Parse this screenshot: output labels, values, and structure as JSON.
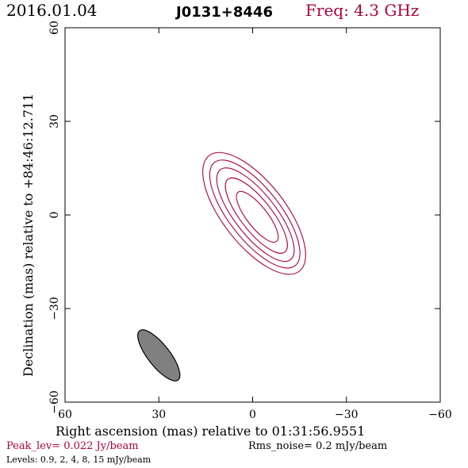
{
  "header": {
    "date": "2016.01.04",
    "source": "J0131+8446",
    "freq": "Freq: 4.3 GHz"
  },
  "footer": {
    "peak": "Peak_lev=  0.022 Jy/beam",
    "rms": "Rms_noise=   0.2 mJy/beam",
    "levels": "Levels: 0.9,    2,    4,    8,   15 mJy/beam"
  },
  "colors": {
    "accent": "#b0003a",
    "beam_fill": "#808080",
    "axes": "#000000"
  },
  "chart_data": {
    "type": "contour",
    "xlabel": "Right ascension (mas) relative to 01:31:56.9551",
    "ylabel": "Declination (mas) relative to +84:46:12.711",
    "xlim": [
      60,
      -60
    ],
    "ylim": [
      -60,
      60
    ],
    "x_ticks": [
      60,
      30,
      0,
      -30,
      -60
    ],
    "y_ticks": [
      -60,
      -30,
      0,
      30,
      60
    ],
    "x_tick_labels": [
      "60",
      "30",
      "0",
      "−30",
      "−60"
    ],
    "y_tick_labels": [
      "−60",
      "−30",
      "0",
      "30",
      "60"
    ],
    "contour_levels_mJy": [
      0.9,
      2,
      4,
      8,
      15
    ],
    "contours": [
      {
        "level": 0.9,
        "cx": -0.5,
        "cy": 0.5,
        "major": 23.5,
        "minor": 10.0,
        "angle_deg": 38
      },
      {
        "level": 2,
        "cx": -0.7,
        "cy": 0.3,
        "major": 21.0,
        "minor": 8.2,
        "angle_deg": 38
      },
      {
        "level": 4,
        "cx": -0.9,
        "cy": 0.1,
        "major": 18.3,
        "minor": 6.6,
        "angle_deg": 38
      },
      {
        "level": 8,
        "cx": -1.2,
        "cy": -0.2,
        "major": 14.8,
        "minor": 5.0,
        "angle_deg": 38
      },
      {
        "level": 15,
        "cx": -1.5,
        "cy": -0.6,
        "major": 10.0,
        "minor": 3.3,
        "angle_deg": 38
      }
    ],
    "beam": {
      "cx": 30,
      "cy": -45,
      "major": 10.0,
      "minor": 3.5,
      "angle_deg": 38
    },
    "grid": false
  }
}
